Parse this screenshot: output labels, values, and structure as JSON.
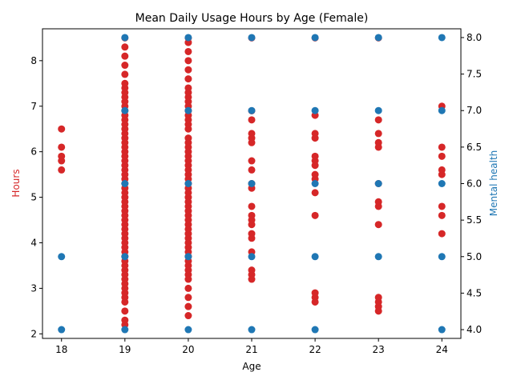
{
  "chart_data": {
    "type": "scatter",
    "title": "Mean Daily Usage Hours by Age (Female)",
    "xlabel": "Age",
    "ylabel_left": "Hours",
    "ylabel_right": "Mental health",
    "x_ticks": [
      18,
      19,
      20,
      21,
      22,
      23,
      24
    ],
    "xlim": [
      17.7,
      24.3
    ],
    "y_left_ticks": [
      2,
      3,
      4,
      5,
      6,
      7,
      8
    ],
    "y_left_lim": [
      1.9,
      8.7
    ],
    "y_right_ticks": [
      4.0,
      4.5,
      5.0,
      5.5,
      6.0,
      6.5,
      7.0,
      7.5,
      8.0
    ],
    "y_right_ticks_text": [
      "4.0",
      "4.5",
      "5.0",
      "5.5",
      "6.0",
      "6.5",
      "7.0",
      "7.5",
      "8.0"
    ],
    "y_right_lim": [
      3.88,
      8.12
    ],
    "colors": {
      "hours": "#d62728",
      "mental_health": "#1f77b4",
      "left_label": "#d62728",
      "right_label": "#1f77b4"
    },
    "series": [
      {
        "axis": "left",
        "points": [
          {
            "age": 18,
            "values": [
              5.6,
              5.8,
              5.9,
              6.1,
              6.5
            ]
          },
          {
            "age": 19,
            "values": [
              2.2,
              2.3,
              2.5,
              2.7,
              2.8,
              2.9,
              3.0,
              3.1,
              3.2,
              3.3,
              3.4,
              3.5,
              3.6,
              3.7,
              3.8,
              3.9,
              4.0,
              4.1,
              4.2,
              4.3,
              4.4,
              4.5,
              4.6,
              4.7,
              4.8,
              4.9,
              5.0,
              5.1,
              5.2,
              5.3,
              5.4,
              5.5,
              5.6,
              5.7,
              5.8,
              5.9,
              6.0,
              6.1,
              6.2,
              6.3,
              6.4,
              6.5,
              6.6,
              6.7,
              6.8,
              6.9,
              7.0,
              7.1,
              7.2,
              7.3,
              7.4,
              7.5,
              7.7,
              7.9,
              8.1,
              8.3,
              8.5
            ]
          },
          {
            "age": 20,
            "values": [
              2.4,
              2.6,
              2.8,
              3.0,
              3.2,
              3.3,
              3.4,
              3.5,
              3.6,
              3.7,
              3.8,
              3.9,
              4.0,
              4.1,
              4.2,
              4.3,
              4.4,
              4.5,
              4.6,
              4.7,
              4.8,
              4.9,
              5.0,
              5.1,
              5.2,
              5.3,
              5.4,
              5.5,
              5.6,
              5.7,
              5.8,
              5.9,
              6.0,
              6.1,
              6.2,
              6.3,
              6.5,
              6.6,
              6.7,
              6.8,
              6.9,
              7.0,
              7.1,
              7.2,
              7.3,
              7.4,
              7.6,
              7.8,
              8.0,
              8.2,
              8.4,
              8.5
            ]
          },
          {
            "age": 21,
            "values": [
              3.2,
              3.3,
              3.4,
              3.8,
              4.1,
              4.2,
              4.4,
              4.5,
              4.6,
              4.8,
              5.2,
              5.3,
              5.6,
              5.8,
              6.2,
              6.3,
              6.4,
              6.7,
              6.9,
              8.5
            ]
          },
          {
            "age": 22,
            "values": [
              2.7,
              2.8,
              2.9,
              4.6,
              5.1,
              5.4,
              5.5,
              5.7,
              5.8,
              5.9,
              6.3,
              6.4,
              6.8,
              8.5
            ]
          },
          {
            "age": 23,
            "values": [
              2.5,
              2.6,
              2.7,
              2.8,
              4.4,
              4.8,
              4.9,
              5.3,
              6.1,
              6.2,
              6.4,
              6.7,
              8.5
            ]
          },
          {
            "age": 24,
            "values": [
              4.2,
              4.6,
              4.8,
              5.5,
              5.6,
              5.9,
              6.1,
              7.0
            ]
          }
        ]
      },
      {
        "axis": "right",
        "points": [
          {
            "age": 18,
            "values": [
              5.0,
              4.0
            ]
          },
          {
            "age": 19,
            "values": [
              4.0,
              5.0,
              6.0,
              7.0,
              8.0
            ]
          },
          {
            "age": 20,
            "values": [
              4.0,
              5.0,
              6.0,
              7.0,
              8.0
            ]
          },
          {
            "age": 21,
            "values": [
              4.0,
              5.0,
              6.0,
              7.0,
              8.0
            ]
          },
          {
            "age": 22,
            "values": [
              4.0,
              5.0,
              6.0,
              7.0,
              8.0
            ]
          },
          {
            "age": 23,
            "values": [
              5.0,
              6.0,
              7.0,
              8.0
            ]
          },
          {
            "age": 24,
            "values": [
              4.0,
              5.0,
              6.0,
              7.0,
              8.0
            ]
          }
        ]
      }
    ]
  }
}
